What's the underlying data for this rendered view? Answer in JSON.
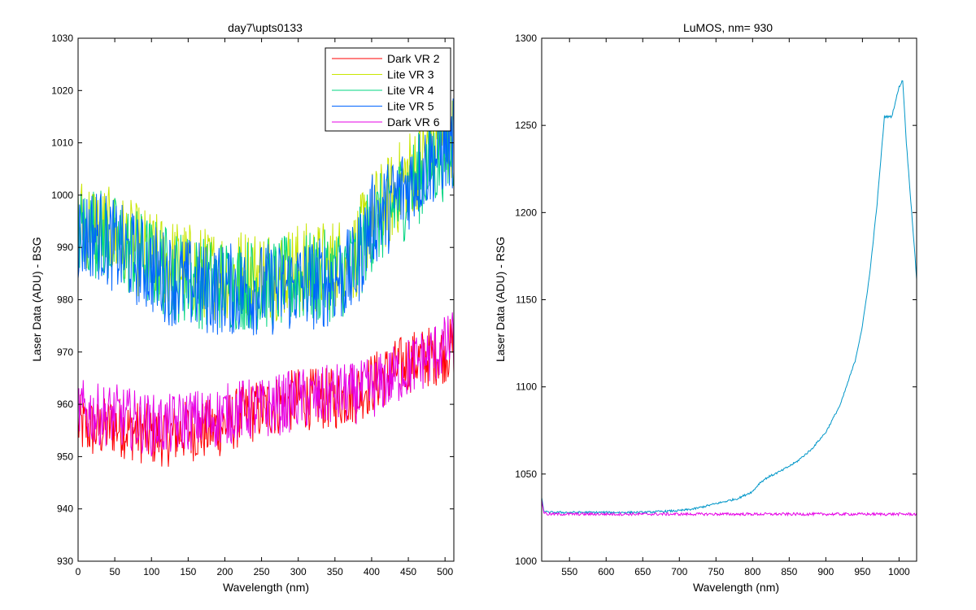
{
  "chart_data": [
    {
      "type": "line",
      "title": "day7\\upts0133",
      "xlabel": "Wavelength (nm)",
      "ylabel": "Laser Data (ADU) - BSG",
      "xlim": [
        0,
        512
      ],
      "ylim": [
        930,
        1030
      ],
      "xticks": [
        0,
        50,
        100,
        150,
        200,
        250,
        300,
        350,
        400,
        450,
        500
      ],
      "yticks": [
        930,
        940,
        950,
        960,
        970,
        980,
        990,
        1000,
        1010,
        1020,
        1030
      ],
      "legend": "top-right",
      "grid": false,
      "x": [
        0,
        25,
        50,
        75,
        100,
        125,
        150,
        175,
        200,
        225,
        250,
        275,
        300,
        325,
        350,
        375,
        400,
        425,
        450,
        475,
        500,
        512
      ],
      "series": [
        {
          "name": "Dark VR 2",
          "color": "#ff0000",
          "values": [
            956,
            955,
            956,
            955,
            954,
            954,
            955,
            955,
            956,
            958,
            959,
            960,
            961,
            961,
            961,
            962,
            964,
            966,
            968,
            969,
            970,
            971
          ]
        },
        {
          "name": "Lite VR 3",
          "color": "#c8e600",
          "values": [
            995,
            994,
            992,
            990,
            988,
            987,
            986,
            985,
            985,
            985,
            985,
            985,
            986,
            986,
            987,
            988,
            996,
            999,
            1004,
            1008,
            1011,
            1012
          ]
        },
        {
          "name": "Lite VR 4",
          "color": "#00d580",
          "values": [
            993,
            993,
            991,
            989,
            987,
            985,
            984,
            983,
            983,
            983,
            983,
            983,
            984,
            984,
            985,
            986,
            994,
            997,
            1001,
            1005,
            1008,
            1009
          ]
        },
        {
          "name": "Lite VR 5",
          "color": "#0064ff",
          "values": [
            992,
            993,
            990,
            988,
            986,
            984,
            983,
            982,
            982,
            982,
            982,
            982,
            983,
            983,
            984,
            985,
            995,
            998,
            1002,
            1006,
            1009,
            1010
          ]
        },
        {
          "name": "Dark VR 6",
          "color": "#e600e6",
          "values": [
            959,
            958,
            958,
            957,
            956,
            956,
            957,
            957,
            958,
            959,
            959,
            960,
            961,
            961,
            962,
            962,
            963,
            965,
            967,
            969,
            971,
            972
          ]
        }
      ]
    },
    {
      "type": "line",
      "title": "LuMOS, nm= 930",
      "xlabel": "Wavelength (nm)",
      "ylabel": "Laser Data (ADU) - RSG",
      "xlim": [
        512,
        1024
      ],
      "ylim": [
        1000,
        1300
      ],
      "xticks": [
        550,
        600,
        650,
        700,
        750,
        800,
        850,
        900,
        950,
        1000
      ],
      "yticks": [
        1000,
        1050,
        1100,
        1150,
        1200,
        1250,
        1300
      ],
      "grid": false,
      "x": [
        512,
        515,
        520,
        550,
        600,
        650,
        700,
        720,
        740,
        760,
        780,
        800,
        810,
        820,
        840,
        860,
        880,
        900,
        920,
        940,
        950,
        960,
        970,
        980,
        990,
        1000,
        1005,
        1010,
        1020,
        1024
      ],
      "series": [
        {
          "color": "#0096c8",
          "values": [
            1036,
            1029,
            1028,
            1028,
            1028,
            1028,
            1029,
            1030,
            1032,
            1034,
            1036,
            1040,
            1045,
            1048,
            1052,
            1057,
            1064,
            1074,
            1090,
            1115,
            1135,
            1165,
            1205,
            1255,
            1255,
            1272,
            1276,
            1240,
            1185,
            1162
          ]
        },
        {
          "color": "#e600e6",
          "values": [
            1035,
            1028,
            1027,
            1027,
            1027,
            1027,
            1027,
            1027,
            1027,
            1027,
            1027,
            1027,
            1027,
            1027,
            1027,
            1027,
            1027,
            1027,
            1027,
            1027,
            1027,
            1027,
            1027,
            1027,
            1027,
            1027,
            1027,
            1027,
            1027,
            1027
          ]
        }
      ]
    }
  ]
}
